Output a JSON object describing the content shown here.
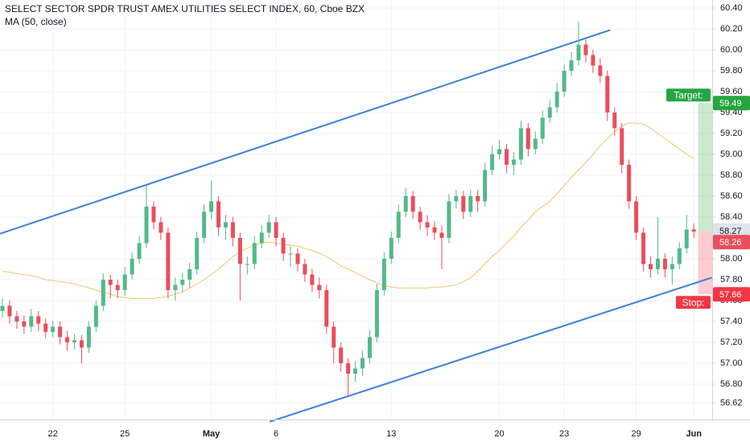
{
  "chart_data": {
    "type": "candlestick",
    "title": "SELECT SECTOR SPDR TRUST AMEX UTILITIES SELECT INDEX, 60, Cboe BZX",
    "categories": [
      null,
      null,
      null,
      null,
      null,
      null,
      null,
      "22",
      null,
      null,
      null,
      null,
      null,
      null,
      null,
      null,
      null,
      "25",
      null,
      null,
      null,
      null,
      null,
      null,
      null,
      null,
      null,
      null,
      null,
      "May",
      null,
      null,
      null,
      null,
      null,
      null,
      null,
      null,
      "6",
      null,
      null,
      null,
      null,
      null,
      null,
      null,
      null,
      null,
      null,
      null,
      null,
      null,
      null,
      null,
      "13",
      null,
      null,
      null,
      null,
      null,
      null,
      null,
      null,
      null,
      null,
      null,
      null,
      null,
      null,
      "20",
      null,
      null,
      null,
      null,
      null,
      null,
      null,
      null,
      "23",
      null,
      null,
      null,
      null,
      null,
      null,
      null,
      null,
      null,
      "29",
      null,
      null,
      null,
      null,
      null,
      null,
      null,
      "Jun"
    ],
    "open": [
      57.5,
      57.55,
      57.45,
      57.4,
      57.35,
      57.45,
      57.38,
      57.3,
      57.35,
      57.25,
      57.2,
      57.22,
      57.15,
      57.35,
      57.55,
      57.8,
      57.75,
      57.7,
      57.85,
      58.0,
      58.15,
      58.5,
      58.35,
      58.25,
      57.7,
      57.75,
      57.8,
      57.9,
      58.2,
      58.45,
      58.55,
      58.3,
      58.35,
      58.2,
      57.95,
      57.95,
      58.15,
      58.25,
      58.35,
      58.2,
      58.05,
      58.05,
      57.95,
      57.85,
      57.75,
      57.7,
      57.35,
      57.15,
      57.0,
      56.9,
      56.95,
      57.05,
      57.25,
      57.7,
      58.0,
      58.2,
      58.45,
      58.6,
      58.45,
      58.35,
      58.3,
      58.25,
      58.2,
      58.55,
      58.6,
      58.45,
      58.6,
      58.55,
      58.85,
      59.0,
      59.05,
      58.9,
      58.95,
      59.25,
      59.05,
      59.15,
      59.35,
      59.45,
      59.6,
      59.8,
      59.9,
      60.05,
      59.95,
      59.85,
      59.75,
      59.4,
      59.25,
      58.9,
      58.55,
      58.25,
      57.95,
      57.9,
      58.0,
      57.9,
      57.95,
      58.1,
      58.28
    ],
    "high": [
      57.62,
      57.6,
      57.5,
      57.46,
      57.52,
      57.5,
      57.43,
      57.41,
      57.4,
      57.31,
      57.28,
      57.27,
      57.4,
      57.6,
      57.86,
      57.85,
      57.8,
      57.92,
      58.06,
      58.22,
      58.7,
      58.55,
      58.4,
      58.3,
      57.82,
      57.86,
      57.96,
      58.26,
      58.52,
      58.75,
      58.6,
      58.42,
      58.4,
      58.25,
      58.02,
      58.22,
      58.32,
      58.42,
      58.4,
      58.25,
      58.12,
      58.1,
      58.0,
      57.9,
      57.82,
      57.75,
      57.4,
      57.2,
      57.05,
      57.02,
      57.12,
      57.32,
      57.76,
      58.06,
      58.26,
      58.52,
      58.68,
      58.65,
      58.5,
      58.42,
      58.36,
      58.32,
      58.62,
      58.66,
      58.65,
      58.66,
      58.66,
      58.92,
      59.08,
      59.14,
      59.1,
      59.02,
      59.32,
      59.3,
      59.22,
      59.42,
      59.52,
      59.68,
      59.86,
      59.98,
      60.27,
      60.1,
      60.0,
      59.92,
      59.8,
      59.45,
      59.3,
      58.95,
      58.6,
      58.3,
      58.02,
      58.4,
      58.05,
      58.02,
      58.16,
      58.42,
      58.34
    ],
    "low": [
      57.44,
      57.38,
      57.33,
      57.28,
      57.3,
      57.31,
      57.24,
      57.25,
      57.18,
      57.12,
      57.13,
      57.0,
      57.1,
      57.3,
      57.5,
      57.62,
      57.62,
      57.64,
      57.8,
      57.95,
      58.1,
      58.28,
      58.18,
      57.62,
      57.6,
      57.68,
      57.72,
      57.85,
      58.15,
      58.38,
      58.22,
      58.18,
      58.12,
      57.6,
      57.85,
      57.9,
      58.1,
      58.2,
      58.12,
      57.98,
      57.92,
      57.88,
      57.78,
      57.68,
      57.62,
      57.28,
      57.0,
      56.92,
      56.68,
      56.82,
      56.88,
      57.0,
      57.2,
      57.65,
      57.95,
      58.15,
      58.4,
      58.38,
      58.28,
      58.22,
      58.18,
      57.9,
      58.15,
      58.48,
      58.38,
      58.4,
      58.45,
      58.5,
      58.8,
      58.95,
      58.82,
      58.8,
      58.9,
      58.98,
      59.0,
      59.1,
      59.3,
      59.4,
      59.55,
      59.75,
      59.85,
      59.88,
      59.78,
      59.68,
      59.32,
      59.18,
      58.82,
      58.48,
      58.18,
      57.88,
      57.82,
      57.85,
      57.82,
      57.75,
      57.9,
      58.05,
      58.2
    ],
    "close": [
      57.55,
      57.45,
      57.4,
      57.35,
      57.45,
      57.38,
      57.3,
      57.35,
      57.25,
      57.2,
      57.22,
      57.15,
      57.35,
      57.55,
      57.8,
      57.75,
      57.7,
      57.85,
      58.0,
      58.15,
      58.5,
      58.35,
      58.25,
      57.7,
      57.75,
      57.8,
      57.9,
      58.2,
      58.45,
      58.55,
      58.3,
      58.35,
      58.2,
      57.95,
      57.95,
      58.15,
      58.25,
      58.35,
      58.2,
      58.05,
      58.05,
      57.95,
      57.85,
      57.75,
      57.7,
      57.35,
      57.15,
      57.0,
      56.9,
      56.95,
      57.05,
      57.25,
      57.7,
      58.0,
      58.2,
      58.45,
      58.6,
      58.45,
      58.35,
      58.3,
      58.25,
      58.2,
      58.55,
      58.6,
      58.45,
      58.6,
      58.55,
      58.85,
      59.0,
      59.05,
      58.9,
      58.95,
      59.25,
      59.05,
      59.15,
      59.35,
      59.45,
      59.6,
      59.8,
      59.9,
      60.05,
      59.95,
      59.85,
      59.75,
      59.4,
      59.25,
      58.9,
      58.55,
      58.25,
      57.95,
      57.9,
      58.0,
      57.9,
      57.95,
      58.1,
      58.28,
      58.26
    ],
    "up_color": "#53b987",
    "down_color": "#eb4d5c",
    "series": [
      {
        "name": "MA (50, close)",
        "color": "#f5c46b",
        "values": [
          57.88,
          57.87,
          57.86,
          57.85,
          57.84,
          57.82,
          57.8,
          57.79,
          57.78,
          57.77,
          57.76,
          57.74,
          57.72,
          57.7,
          57.68,
          57.66,
          57.64,
          57.63,
          57.62,
          57.62,
          57.62,
          57.62,
          57.63,
          57.64,
          57.66,
          57.68,
          57.72,
          57.76,
          57.8,
          57.85,
          57.9,
          57.96,
          58.02,
          58.07,
          58.1,
          58.13,
          58.15,
          58.16,
          58.15,
          58.14,
          58.13,
          58.12,
          58.1,
          58.08,
          58.05,
          58.02,
          57.98,
          57.93,
          57.9,
          57.87,
          57.83,
          57.8,
          57.77,
          57.74,
          57.73,
          57.72,
          57.72,
          57.72,
          57.72,
          57.72,
          57.73,
          57.73,
          57.74,
          57.75,
          57.78,
          57.82,
          57.88,
          57.95,
          58.02,
          58.08,
          58.15,
          58.22,
          58.3,
          58.37,
          58.45,
          58.5,
          58.55,
          58.62,
          58.7,
          58.78,
          58.85,
          58.92,
          59.0,
          59.08,
          59.15,
          59.22,
          59.27,
          59.3,
          59.3,
          59.29,
          59.25,
          59.2,
          59.15,
          59.1,
          59.05,
          59.0,
          58.96
        ]
      }
    ],
    "ylim": [
      56.477,
      60.477
    ],
    "yticks": [
      {
        "value": 60.4,
        "label": "60.40"
      },
      {
        "value": 60.2,
        "label": "60.20"
      },
      {
        "value": 60.0,
        "label": "60.00"
      },
      {
        "value": 59.8,
        "label": "59.80"
      },
      {
        "value": 59.6,
        "label": "59.60"
      },
      {
        "value": 59.4,
        "label": "59.40"
      },
      {
        "value": 59.2,
        "label": "59.20"
      },
      {
        "value": 59.0,
        "label": "59.00"
      },
      {
        "value": 58.8,
        "label": "58.80"
      },
      {
        "value": 58.6,
        "label": "58.60"
      },
      {
        "value": 58.4,
        "label": "58.40"
      },
      {
        "value": 58.0,
        "label": "58.00"
      },
      {
        "value": 57.8,
        "label": "57.80"
      },
      {
        "value": 57.6,
        "label": "57.60"
      },
      {
        "value": 57.4,
        "label": "57.40"
      },
      {
        "value": 57.2,
        "label": "57.20"
      },
      {
        "value": 57.0,
        "label": "57.00"
      },
      {
        "value": 56.8,
        "label": "56.80"
      },
      56.62
    ],
    "grid": true,
    "trendlines": [
      {
        "color": "#3d7fdb",
        "x": [
          -0.34,
          84.4
        ],
        "y": [
          58.24,
          60.19
        ]
      },
      {
        "color": "#3d7fdb",
        "x": [
          37.1,
          98.5
        ],
        "y": [
          56.44,
          57.82
        ]
      }
    ],
    "position": {
      "entry": 58.27,
      "target": 59.49,
      "stop": 57.66,
      "target_label": "Target:",
      "stop_label": "Stop:",
      "profit_color": "#26a640",
      "loss_color": "#f23645"
    },
    "last_price": 58.26
  }
}
